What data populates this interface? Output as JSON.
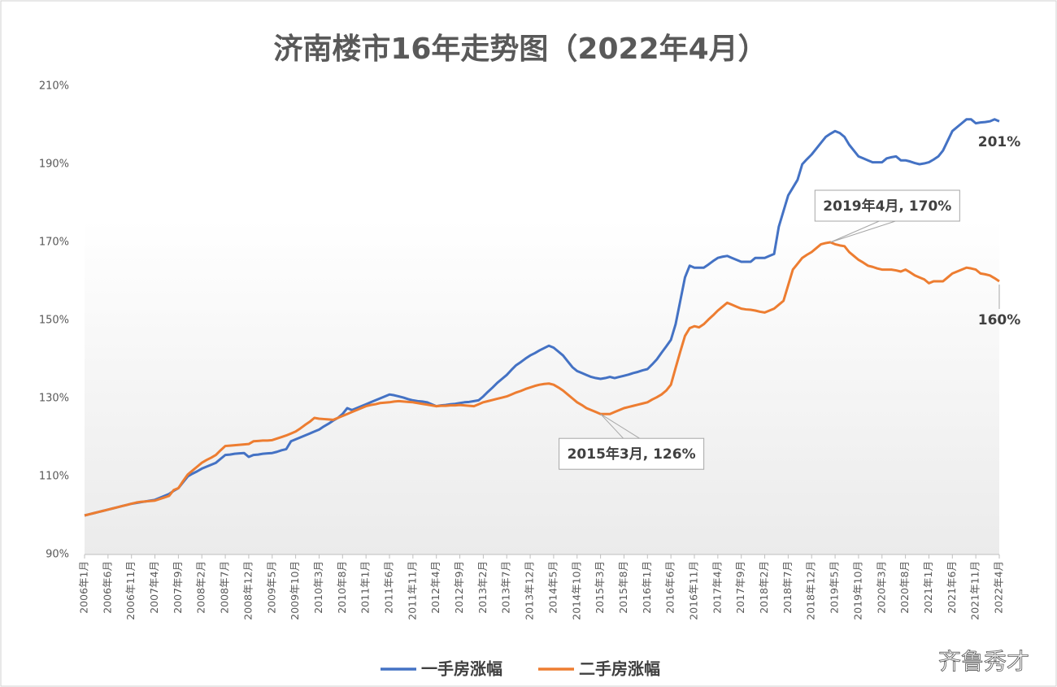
{
  "chart_data": {
    "type": "line",
    "title": "济南楼市16年走势图（2022年4月）",
    "watermark": "齐鲁秀才",
    "categories": [
      "2006年1月",
      null,
      null,
      null,
      null,
      "2006年6月",
      null,
      null,
      null,
      null,
      "2006年11月",
      null,
      null,
      null,
      null,
      "2007年4月",
      null,
      null,
      null,
      null,
      "2007年9月",
      null,
      null,
      null,
      null,
      "2008年2月",
      null,
      null,
      null,
      null,
      "2008年7月",
      null,
      null,
      null,
      null,
      "2008年12月",
      null,
      null,
      null,
      null,
      "2009年5月",
      null,
      null,
      null,
      null,
      "2009年10月",
      null,
      null,
      null,
      null,
      "2010年3月",
      null,
      null,
      null,
      null,
      "2010年8月",
      null,
      null,
      null,
      null,
      "2011年1月",
      null,
      null,
      null,
      null,
      "2011年6月",
      null,
      null,
      null,
      null,
      "2011年11月",
      null,
      null,
      null,
      null,
      "2012年4月",
      null,
      null,
      null,
      null,
      "2012年9月",
      null,
      null,
      null,
      null,
      "2013年2月",
      null,
      null,
      null,
      null,
      "2013年7月",
      null,
      null,
      null,
      null,
      "2013年12月",
      null,
      null,
      null,
      null,
      "2014年5月",
      null,
      null,
      null,
      null,
      "2014年10月",
      null,
      null,
      null,
      null,
      "2015年3月",
      null,
      null,
      null,
      null,
      "2015年8月",
      null,
      null,
      null,
      null,
      "2016年1月",
      null,
      null,
      null,
      null,
      "2016年6月",
      null,
      null,
      null,
      null,
      "2016年11月",
      null,
      null,
      null,
      null,
      "2017年4月",
      null,
      null,
      null,
      null,
      "2017年9月",
      null,
      null,
      null,
      null,
      "2018年2月",
      null,
      null,
      null,
      null,
      "2018年7月",
      null,
      null,
      null,
      null,
      "2018年12月",
      null,
      null,
      null,
      null,
      "2019年5月",
      null,
      null,
      null,
      null,
      "2019年10月",
      null,
      null,
      null,
      null,
      "2020年3月",
      null,
      null,
      null,
      null,
      "2020年8月",
      null,
      null,
      null,
      null,
      "2021年1月",
      null,
      null,
      null,
      null,
      "2021年6月",
      null,
      null,
      null,
      null,
      "2021年11月",
      null,
      null,
      null,
      null,
      "2022年4月"
    ],
    "series": [
      {
        "name": "一手房涨幅",
        "color": "#4472c4",
        "values": [
          100,
          100.3,
          100.6,
          100.9,
          101.2,
          101.5,
          101.8,
          102.1,
          102.4,
          102.7,
          103,
          103.2,
          103.4,
          103.6,
          103.8,
          104,
          104.5,
          105,
          105.5,
          106.3,
          107,
          108.5,
          110,
          110.7,
          111.3,
          112,
          112.5,
          113,
          113.5,
          114.5,
          115.5,
          115.6,
          115.8,
          115.9,
          116,
          115,
          115.5,
          115.6,
          115.8,
          115.9,
          116,
          116.3,
          116.7,
          117,
          119,
          119.5,
          120,
          120.5,
          121,
          121.5,
          122,
          122.8,
          123.5,
          124.3,
          125,
          126,
          127.5,
          127,
          127.5,
          128,
          128.5,
          129,
          129.5,
          130,
          130.5,
          131,
          130.8,
          130.5,
          130.2,
          129.8,
          129.5,
          129.3,
          129.2,
          129,
          128.5,
          128,
          128.2,
          128.3,
          128.5,
          128.6,
          128.8,
          129,
          129.1,
          129.3,
          129.5,
          130.5,
          131.7,
          132.8,
          134,
          135,
          136,
          137.3,
          138.5,
          139.3,
          140.2,
          141,
          141.6,
          142.3,
          142.9,
          143.5,
          143,
          142,
          141,
          139.5,
          138,
          137,
          136.5,
          136,
          135.5,
          135.2,
          135,
          135.2,
          135.5,
          135.2,
          135.5,
          135.8,
          136.1,
          136.5,
          136.8,
          137.2,
          137.5,
          138.7,
          140,
          141.7,
          143.3,
          145,
          149,
          155,
          161,
          164,
          163.5,
          163.5,
          163.5,
          164.3,
          165.2,
          166,
          166.3,
          166.5,
          166,
          165.5,
          165,
          165,
          165,
          166,
          166,
          166,
          166.5,
          167,
          174,
          178,
          182,
          184,
          186,
          190,
          191.3,
          192.5,
          194,
          195.5,
          197,
          197.8,
          198.5,
          198,
          197,
          195,
          193.5,
          192,
          191.5,
          191,
          190.5,
          190.5,
          190.5,
          191.5,
          191.8,
          192,
          191,
          191,
          190.7,
          190.3,
          190,
          190.2,
          190.5,
          191.2,
          192,
          193.5,
          196,
          198.5,
          199.5,
          200.5,
          201.5,
          201.5,
          200.5,
          200.7,
          200.8,
          201,
          201.5,
          201
        ],
        "value_labels": [
          null,
          null,
          null,
          null,
          null,
          null,
          null,
          null,
          null,
          null,
          null,
          null,
          null,
          null,
          null,
          null,
          null,
          null,
          null,
          null,
          null,
          null,
          null,
          null,
          null,
          null,
          null,
          null,
          null,
          null,
          null,
          null,
          null,
          null,
          null,
          null,
          null,
          null,
          null,
          null,
          null,
          null,
          null,
          null,
          null,
          null,
          null,
          null,
          null,
          null,
          null,
          null,
          null,
          null,
          null,
          null,
          null,
          null,
          null,
          null,
          null,
          null,
          null,
          null,
          null,
          null,
          null,
          null,
          null,
          null,
          null,
          null,
          null,
          null,
          null,
          null,
          null,
          null,
          null,
          null,
          null,
          null,
          null,
          null,
          null,
          null,
          null,
          null,
          null,
          null,
          null,
          null,
          null,
          null,
          null,
          null,
          null,
          null,
          null,
          null,
          null,
          null,
          null,
          null,
          null,
          null,
          null,
          null,
          null,
          null,
          null,
          null,
          null,
          null,
          null,
          null,
          null,
          null,
          null,
          null,
          null,
          null,
          null,
          null,
          null,
          null,
          null,
          null,
          null,
          null,
          null,
          null,
          null,
          null,
          null,
          null,
          null,
          null,
          null,
          null,
          null,
          null,
          null,
          null,
          null,
          null,
          null,
          null,
          null,
          null,
          null,
          null,
          null,
          null,
          null,
          null,
          null,
          null,
          null,
          null,
          null,
          null,
          null,
          null,
          null,
          null,
          null,
          null,
          null,
          null,
          null,
          null,
          null,
          null,
          null,
          null,
          null,
          null,
          null,
          null,
          null,
          null,
          null,
          null,
          null,
          null,
          null,
          null,
          null,
          null,
          null,
          null,
          null,
          null,
          null,
          "201%"
        ]
      },
      {
        "name": "二手房涨幅",
        "color": "#ed7d31",
        "values": [
          100,
          100.3,
          100.6,
          100.9,
          101.2,
          101.5,
          101.8,
          102.1,
          102.4,
          102.7,
          103,
          103.3,
          103.5,
          103.6,
          103.7,
          103.8,
          104.2,
          104.6,
          105,
          106.5,
          107,
          108.8,
          110.5,
          111.5,
          112.5,
          113.5,
          114.2,
          114.8,
          115.5,
          116.7,
          117.8,
          117.9,
          118,
          118.1,
          118.2,
          118.3,
          119,
          119.1,
          119.2,
          119.2,
          119.3,
          119.7,
          120.1,
          120.5,
          121,
          121.5,
          122.3,
          123.2,
          124,
          125,
          124.8,
          124.7,
          124.6,
          124.5,
          125,
          125.5,
          126,
          126.5,
          127,
          127.5,
          128,
          128.3,
          128.5,
          128.8,
          128.9,
          129,
          129.2,
          129.3,
          129.2,
          129.1,
          129,
          128.8,
          128.6,
          128.4,
          128.2,
          128,
          128.1,
          128.1,
          128.2,
          128.2,
          128.3,
          128.2,
          128.1,
          128,
          128.5,
          129,
          129.3,
          129.6,
          129.9,
          130.2,
          130.5,
          131,
          131.5,
          131.9,
          132.4,
          132.8,
          133.2,
          133.5,
          133.7,
          133.8,
          133.5,
          132.8,
          132,
          131,
          130,
          129,
          128.3,
          127.5,
          127,
          126.5,
          126,
          126,
          126,
          126.5,
          127,
          127.5,
          127.8,
          128.1,
          128.4,
          128.7,
          129,
          129.7,
          130.3,
          131,
          132,
          133.5,
          137.8,
          142,
          146,
          148,
          148.5,
          148.2,
          149,
          150.2,
          151.3,
          152.5,
          153.5,
          154.5,
          154,
          153.5,
          153,
          152.8,
          152.7,
          152.5,
          152.2,
          152,
          152.5,
          153,
          154,
          155,
          159,
          163,
          164.5,
          166,
          166.8,
          167.5,
          168.5,
          169.5,
          169.8,
          170,
          169.5,
          169.2,
          169,
          167.5,
          166.5,
          165.5,
          164.8,
          164,
          163.7,
          163.3,
          163,
          163,
          163,
          162.8,
          162.5,
          163,
          162.3,
          161.5,
          161,
          160.5,
          159.5,
          160,
          160,
          160,
          161,
          162,
          162.5,
          163,
          163.5,
          163.3,
          163,
          162,
          161.8,
          161.5,
          160.8,
          160
        ],
        "value_labels": [
          null,
          null,
          null,
          null,
          null,
          null,
          null,
          null,
          null,
          null,
          null,
          null,
          null,
          null,
          null,
          null,
          null,
          null,
          null,
          null,
          null,
          null,
          null,
          null,
          null,
          null,
          null,
          null,
          null,
          null,
          null,
          null,
          null,
          null,
          null,
          null,
          null,
          null,
          null,
          null,
          null,
          null,
          null,
          null,
          null,
          null,
          null,
          null,
          null,
          null,
          null,
          null,
          null,
          null,
          null,
          null,
          null,
          null,
          null,
          null,
          null,
          null,
          null,
          null,
          null,
          null,
          null,
          null,
          null,
          null,
          null,
          null,
          null,
          null,
          null,
          null,
          null,
          null,
          null,
          null,
          null,
          null,
          null,
          null,
          null,
          null,
          null,
          null,
          null,
          null,
          null,
          null,
          null,
          null,
          null,
          null,
          null,
          null,
          null,
          null,
          null,
          null,
          null,
          null,
          null,
          null,
          null,
          null,
          null,
          null,
          "2015年3月, 126%",
          null,
          null,
          null,
          null,
          null,
          null,
          null,
          null,
          null,
          null,
          null,
          null,
          null,
          null,
          null,
          null,
          null,
          null,
          null,
          null,
          null,
          null,
          null,
          null,
          null,
          null,
          null,
          null,
          null,
          null,
          null,
          null,
          null,
          null,
          null,
          null,
          null,
          null,
          null,
          null,
          null,
          null,
          null,
          null,
          null,
          null,
          null,
          null,
          "2019年4月, 170%",
          null,
          null,
          null,
          null,
          null,
          null,
          null,
          null,
          null,
          null,
          null,
          null,
          null,
          null,
          null,
          null,
          null,
          null,
          null,
          null,
          null,
          null,
          null,
          null,
          null,
          null,
          null,
          null,
          null,
          null,
          null,
          null,
          null,
          null,
          null,
          "160%"
        ]
      }
    ],
    "ylim": [
      90,
      210
    ],
    "yticks": [
      {
        "value": 90,
        "label": "90%"
      },
      {
        "value": 110,
        "label": "110%"
      },
      {
        "value": 130,
        "label": "130%"
      },
      {
        "value": 150,
        "label": "150%"
      },
      {
        "value": 170,
        "label": "170%"
      },
      {
        "value": 190,
        "label": "190%"
      },
      {
        "value": 210,
        "label": "210%"
      }
    ],
    "grid": false,
    "legend": "bottom"
  }
}
